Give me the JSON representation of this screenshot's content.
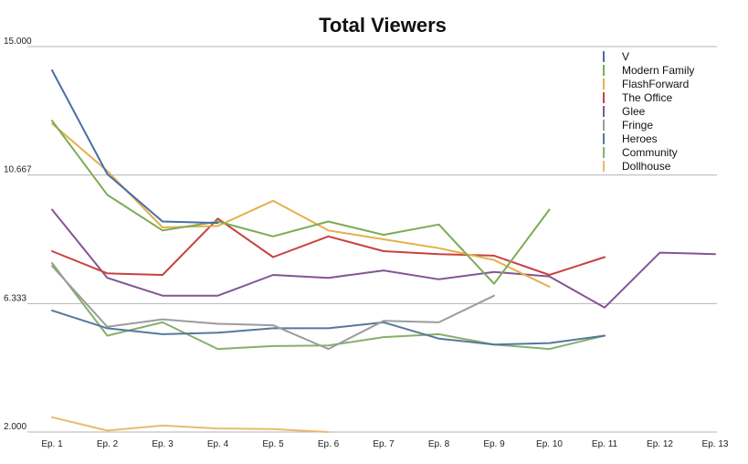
{
  "chart_data": {
    "type": "line",
    "title": "Total Viewers",
    "xlabel": "",
    "ylabel": "",
    "categories": [
      "Ep. 1",
      "Ep. 2",
      "Ep. 3",
      "Ep. 4",
      "Ep. 5",
      "Ep. 6",
      "Ep. 7",
      "Ep. 8",
      "Ep. 9",
      "Ep. 10",
      "Ep. 11",
      "Ep. 12",
      "Ep. 13"
    ],
    "ylim": [
      2.0,
      15.0
    ],
    "y_ticks": [
      "2.000",
      "6.333",
      "10.667",
      "15.000"
    ],
    "y_tick_values": [
      2.0,
      6.333,
      10.667,
      15.0
    ],
    "grid": true,
    "legend_position": "top-right",
    "series": [
      {
        "name": "V",
        "color": "#4a6fa5",
        "values": [
          14.2,
          10.7,
          9.1,
          9.05,
          null,
          null,
          null,
          null,
          null,
          null,
          null,
          null,
          null
        ]
      },
      {
        "name": "Modern Family",
        "color": "#7cab55",
        "values": [
          12.5,
          10.0,
          8.8,
          9.1,
          8.6,
          9.1,
          8.65,
          9.0,
          7.0,
          9.5,
          null,
          null,
          null
        ]
      },
      {
        "name": "FlashForward",
        "color": "#e4b04a",
        "values": [
          12.4,
          10.8,
          8.9,
          8.95,
          9.8,
          8.8,
          8.5,
          8.2,
          7.8,
          6.9,
          null,
          null,
          null
        ]
      },
      {
        "name": "The Office",
        "color": "#c94141",
        "values": [
          8.1,
          7.35,
          7.3,
          9.2,
          7.9,
          8.6,
          8.1,
          8.0,
          7.95,
          7.3,
          7.9,
          null,
          null
        ]
      },
      {
        "name": "Glee",
        "color": "#845593",
        "values": [
          9.5,
          7.2,
          6.6,
          6.6,
          7.3,
          7.2,
          7.45,
          7.15,
          7.4,
          7.25,
          6.2,
          8.05,
          8.0
        ]
      },
      {
        "name": "Fringe",
        "color": "#9c9c9c",
        "values": [
          7.6,
          5.55,
          5.8,
          5.65,
          5.6,
          4.8,
          5.75,
          5.7,
          6.6,
          null,
          null,
          null,
          null
        ]
      },
      {
        "name": "Heroes",
        "color": "#55789c",
        "values": [
          6.1,
          5.5,
          5.3,
          5.35,
          5.5,
          5.5,
          5.7,
          5.15,
          4.95,
          5.0,
          5.25,
          null,
          null
        ]
      },
      {
        "name": "Community",
        "color": "#86b06a",
        "values": [
          7.7,
          5.25,
          5.7,
          4.8,
          4.9,
          4.92,
          5.2,
          5.3,
          4.95,
          4.8,
          5.25,
          null,
          null
        ]
      },
      {
        "name": "Dollhouse",
        "color": "#e9ba6c",
        "values": [
          2.5,
          2.05,
          2.22,
          2.12,
          2.1,
          2.0,
          null,
          null,
          null,
          null,
          null,
          null,
          null
        ]
      }
    ]
  }
}
